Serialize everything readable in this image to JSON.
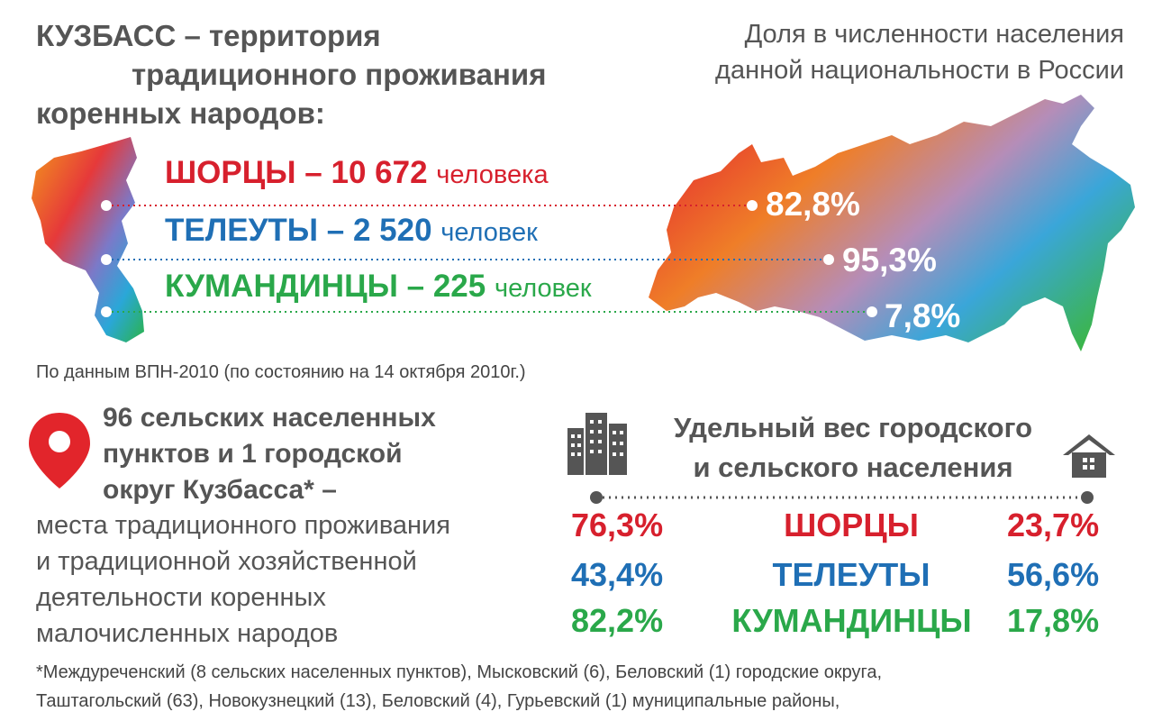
{
  "title": {
    "line1": "КУЗБАСС – территория",
    "line2": "традиционного проживания",
    "line3": "коренных народов:"
  },
  "share_title": {
    "line1": "Доля в численности населения",
    "line2": "данной национальности в России"
  },
  "peoples": [
    {
      "name": "ШОРЦЫ – 10 672",
      "unit": "человека",
      "share": "82,8%",
      "color": "#d7202d"
    },
    {
      "name": "ТЕЛЕУТЫ – 2 520",
      "unit": "человек",
      "share": "95,3%",
      "color": "#1f6fb5"
    },
    {
      "name": "КУМАНДИНЦЫ – 225",
      "unit": "человек",
      "share": "7,8%",
      "color": "#2aa84a"
    }
  ],
  "source": "По данным ВПН-2010 (по состоянию на 14 октября 2010г.)",
  "rural": {
    "head1": "96 сельских населенных",
    "head2": "пунктов и 1 городской",
    "head3": "округ Кузбасса* –",
    "body1": "места традиционного проживания",
    "body2": "и традиционной хозяйственной",
    "body3": "деятельности коренных",
    "body4": "малочисленных народов"
  },
  "ratio": {
    "head1": "Удельный вес городского",
    "head2": "и сельского населения",
    "rows": [
      {
        "urban": "76,3%",
        "name": "ШОРЦЫ",
        "rural": "23,7%",
        "color": "#d7202d"
      },
      {
        "urban": "43,4%",
        "name": "ТЕЛЕУТЫ",
        "rural": "56,6%",
        "color": "#1f6fb5"
      },
      {
        "urban": "82,2%",
        "name": "КУМАНДИНЦЫ",
        "rural": "17,8%",
        "color": "#2aa84a"
      }
    ]
  },
  "footnote": {
    "line1": "*Междуреченский (8 сельских населенных пунктов), Мысковский (6), Беловский (1) городские округа,",
    "line2": "Таштагольский (63), Новокузнецкий (13), Беловский (4), Гурьевский (1) муниципальные районы,"
  },
  "icons": {
    "pin": "location-pin-icon",
    "city": "city-buildings-icon",
    "house": "house-icon"
  }
}
